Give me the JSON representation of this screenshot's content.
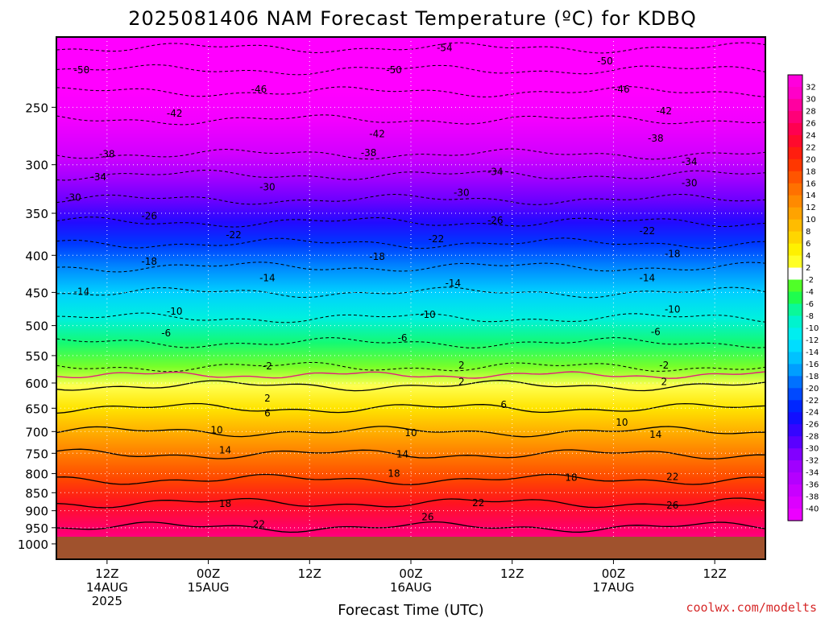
{
  "title": "2025081406 NAM Forecast Temperature (ºC) for KDBQ",
  "credit": "coolwx.com/modelts",
  "colors": {
    "credit": "#d62828",
    "ground": "#a0522d"
  },
  "chart_data": {
    "type": "time-height contour",
    "xlabel": "Forecast Time (UTC)",
    "x_ticks": [
      {
        "hour": 6,
        "line1": "12Z",
        "line2": "14AUG",
        "line3": "2025"
      },
      {
        "hour": 18,
        "line1": "00Z",
        "line2": "15AUG",
        "line3": ""
      },
      {
        "hour": 30,
        "line1": "12Z",
        "line2": "",
        "line3": ""
      },
      {
        "hour": 42,
        "line1": "00Z",
        "line2": "16AUG",
        "line3": ""
      },
      {
        "hour": 54,
        "line1": "12Z",
        "line2": "",
        "line3": ""
      },
      {
        "hour": 66,
        "line1": "00Z",
        "line2": "17AUG",
        "line3": ""
      },
      {
        "hour": 78,
        "line1": "12Z",
        "line2": "",
        "line3": ""
      }
    ],
    "x_range_hours": [
      0,
      84
    ],
    "y_scale": "log pressure (hPa)",
    "y_range_hpa": [
      200,
      1050
    ],
    "y_ticks": [
      250,
      300,
      350,
      400,
      450,
      500,
      550,
      600,
      650,
      700,
      750,
      800,
      850,
      900,
      950,
      1000
    ],
    "colorbar_labels": [
      32,
      30,
      28,
      26,
      24,
      22,
      20,
      18,
      16,
      14,
      12,
      10,
      8,
      6,
      4,
      2,
      -2,
      -4,
      -6,
      -8,
      -10,
      -12,
      -14,
      -16,
      -18,
      -20,
      -22,
      -24,
      -26,
      -28,
      -30,
      -32,
      -34,
      -36,
      -38,
      -40
    ],
    "freezing_line_color": "#e0207a",
    "contour_levels": [
      {
        "value": -54,
        "pressure_hpa": 207
      },
      {
        "value": -50,
        "pressure_hpa": 222
      },
      {
        "value": -46,
        "pressure_hpa": 238
      },
      {
        "value": -42,
        "pressure_hpa": 260
      },
      {
        "value": -38,
        "pressure_hpa": 290
      },
      {
        "value": -34,
        "pressure_hpa": 310
      },
      {
        "value": -30,
        "pressure_hpa": 335
      },
      {
        "value": -26,
        "pressure_hpa": 360
      },
      {
        "value": -22,
        "pressure_hpa": 385
      },
      {
        "value": -18,
        "pressure_hpa": 415
      },
      {
        "value": -14,
        "pressure_hpa": 450
      },
      {
        "value": -10,
        "pressure_hpa": 488
      },
      {
        "value": -6,
        "pressure_hpa": 528
      },
      {
        "value": -2,
        "pressure_hpa": 570
      },
      {
        "value": 2,
        "pressure_hpa": 605
      },
      {
        "value": 6,
        "pressure_hpa": 650
      },
      {
        "value": 10,
        "pressure_hpa": 700
      },
      {
        "value": 14,
        "pressure_hpa": 752
      },
      {
        "value": 18,
        "pressure_hpa": 815
      },
      {
        "value": 22,
        "pressure_hpa": 878
      },
      {
        "value": 26,
        "pressure_hpa": 948
      }
    ],
    "contour_labels": [
      {
        "text": "-54",
        "hour": 46,
        "pressure_hpa": 207
      },
      {
        "text": "-50",
        "hour": 3,
        "pressure_hpa": 222
      },
      {
        "text": "-50",
        "hour": 40,
        "pressure_hpa": 222
      },
      {
        "text": "-50",
        "hour": 65,
        "pressure_hpa": 216
      },
      {
        "text": "-46",
        "hour": 24,
        "pressure_hpa": 236
      },
      {
        "text": "-46",
        "hour": 67,
        "pressure_hpa": 236
      },
      {
        "text": "-42",
        "hour": 14,
        "pressure_hpa": 255
      },
      {
        "text": "-42",
        "hour": 72,
        "pressure_hpa": 253
      },
      {
        "text": "-42",
        "hour": 38,
        "pressure_hpa": 272
      },
      {
        "text": "-38",
        "hour": 6,
        "pressure_hpa": 290
      },
      {
        "text": "-38",
        "hour": 37,
        "pressure_hpa": 289
      },
      {
        "text": "-38",
        "hour": 71,
        "pressure_hpa": 276
      },
      {
        "text": "-34",
        "hour": 5,
        "pressure_hpa": 312
      },
      {
        "text": "-34",
        "hour": 52,
        "pressure_hpa": 307
      },
      {
        "text": "-34",
        "hour": 75,
        "pressure_hpa": 297
      },
      {
        "text": "-30",
        "hour": 2,
        "pressure_hpa": 333
      },
      {
        "text": "-30",
        "hour": 25,
        "pressure_hpa": 322
      },
      {
        "text": "-30",
        "hour": 48,
        "pressure_hpa": 328
      },
      {
        "text": "-30",
        "hour": 75,
        "pressure_hpa": 318
      },
      {
        "text": "-26",
        "hour": 11,
        "pressure_hpa": 353
      },
      {
        "text": "-26",
        "hour": 52,
        "pressure_hpa": 358
      },
      {
        "text": "-22",
        "hour": 21,
        "pressure_hpa": 375
      },
      {
        "text": "-22",
        "hour": 45,
        "pressure_hpa": 380
      },
      {
        "text": "-22",
        "hour": 70,
        "pressure_hpa": 370
      },
      {
        "text": "-18",
        "hour": 11,
        "pressure_hpa": 408
      },
      {
        "text": "-18",
        "hour": 38,
        "pressure_hpa": 402
      },
      {
        "text": "-18",
        "hour": 73,
        "pressure_hpa": 398
      },
      {
        "text": "-14",
        "hour": 3,
        "pressure_hpa": 449
      },
      {
        "text": "-14",
        "hour": 25,
        "pressure_hpa": 430
      },
      {
        "text": "-14",
        "hour": 47,
        "pressure_hpa": 437
      },
      {
        "text": "-14",
        "hour": 70,
        "pressure_hpa": 430
      },
      {
        "text": "-10",
        "hour": 14,
        "pressure_hpa": 478
      },
      {
        "text": "-10",
        "hour": 44,
        "pressure_hpa": 483
      },
      {
        "text": "-10",
        "hour": 73,
        "pressure_hpa": 475
      },
      {
        "text": "-6",
        "hour": 13,
        "pressure_hpa": 512
      },
      {
        "text": "-6",
        "hour": 41,
        "pressure_hpa": 520
      },
      {
        "text": "-6",
        "hour": 71,
        "pressure_hpa": 510
      },
      {
        "text": "-2",
        "hour": 25,
        "pressure_hpa": 569
      },
      {
        "text": "2",
        "hour": 48,
        "pressure_hpa": 567
      },
      {
        "text": "-2",
        "hour": 72,
        "pressure_hpa": 567
      },
      {
        "text": "2",
        "hour": 48,
        "pressure_hpa": 598
      },
      {
        "text": "2",
        "hour": 72,
        "pressure_hpa": 598
      },
      {
        "text": "2",
        "hour": 25,
        "pressure_hpa": 630
      },
      {
        "text": "6",
        "hour": 25,
        "pressure_hpa": 660
      },
      {
        "text": "6",
        "hour": 53,
        "pressure_hpa": 643
      },
      {
        "text": "10",
        "hour": 19,
        "pressure_hpa": 697
      },
      {
        "text": "10",
        "hour": 42,
        "pressure_hpa": 703
      },
      {
        "text": "10",
        "hour": 67,
        "pressure_hpa": 680
      },
      {
        "text": "14",
        "hour": 20,
        "pressure_hpa": 743
      },
      {
        "text": "14",
        "hour": 41,
        "pressure_hpa": 752
      },
      {
        "text": "14",
        "hour": 71,
        "pressure_hpa": 707
      },
      {
        "text": "18",
        "hour": 40,
        "pressure_hpa": 800
      },
      {
        "text": "18",
        "hour": 61,
        "pressure_hpa": 810
      },
      {
        "text": "18",
        "hour": 20,
        "pressure_hpa": 880
      },
      {
        "text": "22",
        "hour": 73,
        "pressure_hpa": 808
      },
      {
        "text": "22",
        "hour": 50,
        "pressure_hpa": 878
      },
      {
        "text": "22",
        "hour": 24,
        "pressure_hpa": 940
      },
      {
        "text": "26",
        "hour": 44,
        "pressure_hpa": 918
      },
      {
        "text": "26",
        "hour": 73,
        "pressure_hpa": 885
      }
    ]
  }
}
